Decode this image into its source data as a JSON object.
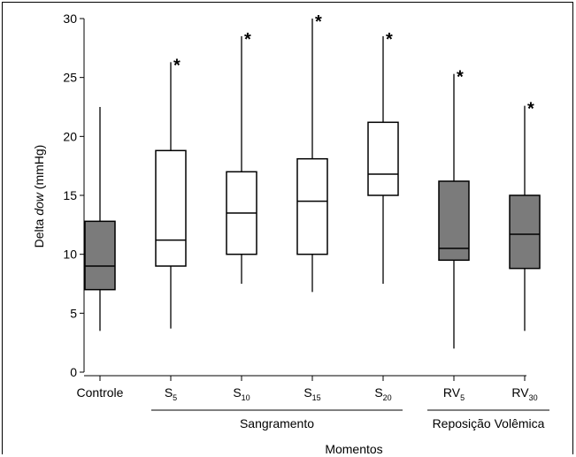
{
  "chart_data": {
    "type": "boxplot",
    "ylabel_prefix": "Delta ",
    "ylabel_italic": "dow",
    "ylabel_suffix": " (mmHg)",
    "xlabel": "Momentos",
    "ylim": [
      0,
      30
    ],
    "yticks": [
      0,
      5,
      10,
      15,
      20,
      25,
      30
    ],
    "group_labels": [
      "Sangramento",
      "Reposição Volêmica"
    ],
    "categories": [
      {
        "base": "Controle",
        "sub": "",
        "min": 3.5,
        "q1": 7.0,
        "median": 9.0,
        "q3": 12.8,
        "max": 22.5,
        "fill": "#7b7b7b",
        "significant": false
      },
      {
        "base": "S",
        "sub": "5",
        "min": 3.7,
        "q1": 9.0,
        "median": 11.2,
        "q3": 18.8,
        "max": 26.3,
        "fill": "#ffffff",
        "significant": true
      },
      {
        "base": "S",
        "sub": "10",
        "min": 7.5,
        "q1": 10.0,
        "median": 13.5,
        "q3": 17.0,
        "max": 28.5,
        "fill": "#ffffff",
        "significant": true
      },
      {
        "base": "S",
        "sub": "15",
        "min": 6.8,
        "q1": 10.0,
        "median": 14.5,
        "q3": 18.1,
        "max": 30.0,
        "fill": "#ffffff",
        "significant": true
      },
      {
        "base": "S",
        "sub": "20",
        "min": 7.5,
        "q1": 15.0,
        "median": 16.8,
        "q3": 21.2,
        "max": 28.5,
        "fill": "#ffffff",
        "significant": true
      },
      {
        "base": "RV",
        "sub": "5",
        "min": 2.0,
        "q1": 9.5,
        "median": 10.5,
        "q3": 16.2,
        "max": 25.3,
        "fill": "#7b7b7b",
        "significant": true
      },
      {
        "base": "RV",
        "sub": "30",
        "min": 3.5,
        "q1": 8.8,
        "median": 11.7,
        "q3": 15.0,
        "max": 22.6,
        "fill": "#7b7b7b",
        "significant": true
      }
    ],
    "significance_marker": "*"
  }
}
